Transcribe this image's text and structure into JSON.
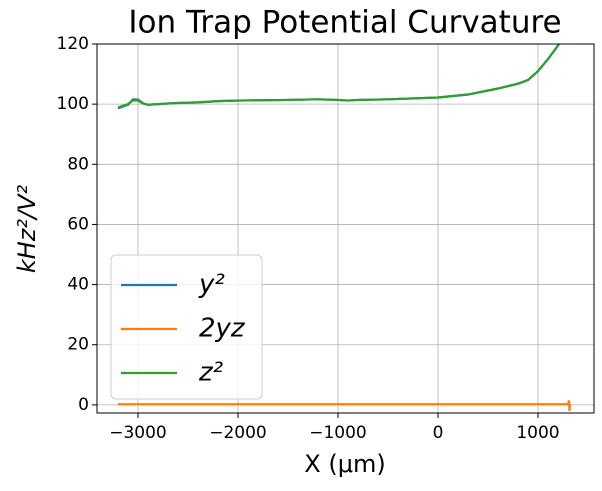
{
  "chart_data": {
    "type": "line",
    "title": "Ion Trap Potential Curvature",
    "xlabel": "X (μm)",
    "ylabel": "kHz²/V²",
    "xlim": [
      -3410,
      1560
    ],
    "ylim": [
      -2.7,
      120
    ],
    "xticks": [
      {
        "value": -3000,
        "label": "−3000"
      },
      {
        "value": -2000,
        "label": "−2000"
      },
      {
        "value": -1000,
        "label": "−1000"
      },
      0,
      1000
    ],
    "yticks": [
      0,
      20,
      40,
      60,
      80,
      100,
      120
    ],
    "grid": true,
    "legend": "lower left",
    "series": [
      {
        "name": "y²",
        "color": "#1f77b4",
        "x": [
          -3200,
          -3100,
          -3050,
          -3000,
          -2950,
          -2900,
          -2800,
          -2600,
          -2400,
          -2200,
          -2000,
          -1500,
          -1200,
          -1000,
          -900,
          -800,
          -500,
          0,
          300,
          600,
          800,
          900,
          1000,
          1100,
          1200,
          1260
        ],
        "values": [
          98.6,
          99.8,
          101.6,
          101.5,
          100.3,
          99.8,
          100,
          100.4,
          100.6,
          101,
          101.2,
          101.4,
          101.6,
          101.4,
          101.2,
          101.4,
          101.6,
          102.2,
          103.2,
          105.2,
          106.8,
          108,
          111,
          115,
          119.5,
          123
        ]
      },
      {
        "name": "2yz",
        "color": "#ff7f0e",
        "x": [
          -3200,
          -2000,
          -1000,
          0,
          1000,
          1300,
          1310,
          1315,
          1320
        ],
        "values": [
          0.2,
          0.2,
          0.2,
          0.2,
          0.2,
          0.2,
          1.5,
          -2,
          0.2
        ]
      },
      {
        "name": "z²",
        "color": "#2ca02c",
        "x": [
          -3200,
          -3100,
          -3050,
          -3000,
          -2950,
          -2900,
          -2800,
          -2600,
          -2400,
          -2200,
          -2000,
          -1500,
          -1200,
          -1000,
          -900,
          -800,
          -500,
          0,
          300,
          600,
          800,
          900,
          1000,
          1100,
          1200,
          1260
        ],
        "values": [
          98.9,
          100,
          101.3,
          101.2,
          100.2,
          99.8,
          100,
          100.4,
          100.6,
          101,
          101.2,
          101.4,
          101.6,
          101.4,
          101.2,
          101.4,
          101.6,
          102.2,
          103.2,
          105.2,
          106.8,
          108,
          111,
          115,
          119.5,
          123
        ]
      }
    ]
  }
}
